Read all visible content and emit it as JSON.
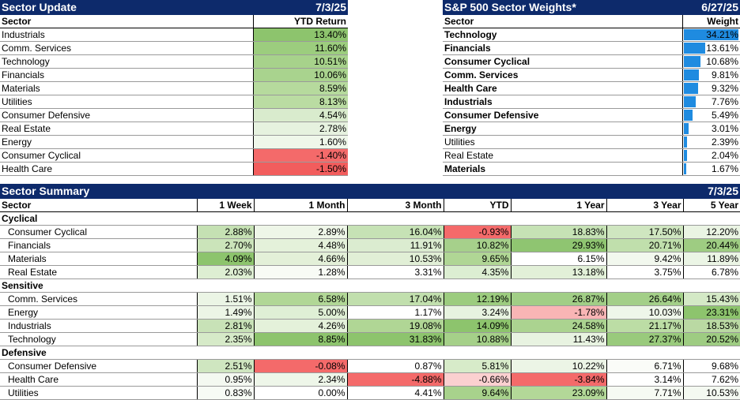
{
  "sector_update": {
    "title": "Sector Update",
    "date": "7/3/25",
    "col_sector": "Sector",
    "col_ytd": "YTD Return",
    "rows": [
      {
        "sector": "Industrials",
        "ytd": "13.40%",
        "color": "#8dc46d"
      },
      {
        "sector": "Comm. Services",
        "ytd": "11.60%",
        "color": "#9ccd7e"
      },
      {
        "sector": "Technology",
        "ytd": "10.51%",
        "color": "#a7d28b"
      },
      {
        "sector": "Financials",
        "ytd": "10.06%",
        "color": "#a9d38e"
      },
      {
        "sector": "Materials",
        "ytd": "8.59%",
        "color": "#b6da9d"
      },
      {
        "sector": "Utilities",
        "ytd": "8.13%",
        "color": "#badca2"
      },
      {
        "sector": "Consumer Defensive",
        "ytd": "4.54%",
        "color": "#d9ebcd"
      },
      {
        "sector": "Real Estate",
        "ytd": "2.78%",
        "color": "#e6f2df"
      },
      {
        "sector": "Energy",
        "ytd": "1.60%",
        "color": "#eff7ea"
      },
      {
        "sector": "Consumer Cyclical",
        "ytd": "-1.40%",
        "color": "#f46a6a"
      },
      {
        "sector": "Health Care",
        "ytd": "-1.50%",
        "color": "#f25d5d"
      }
    ]
  },
  "weights": {
    "title": "S&P 500 Sector Weights*",
    "date": "6/27/25",
    "col_sector": "Sector",
    "col_weight": "Weight",
    "rows": [
      {
        "sector": "Technology",
        "weight": "34.21%",
        "value": 34.21,
        "bold": true
      },
      {
        "sector": "Financials",
        "weight": "13.61%",
        "value": 13.61,
        "bold": true
      },
      {
        "sector": "Consumer Cyclical",
        "weight": "10.68%",
        "value": 10.68,
        "bold": true
      },
      {
        "sector": "Comm. Services",
        "weight": "9.81%",
        "value": 9.81,
        "bold": true
      },
      {
        "sector": "Health Care",
        "weight": "9.32%",
        "value": 9.32,
        "bold": true
      },
      {
        "sector": "Industrials",
        "weight": "7.76%",
        "value": 7.76,
        "bold": true
      },
      {
        "sector": "Consumer Defensive",
        "weight": "5.49%",
        "value": 5.49,
        "bold": true
      },
      {
        "sector": "Energy",
        "weight": "3.01%",
        "value": 3.01,
        "bold": true
      },
      {
        "sector": "Utilities",
        "weight": "2.39%",
        "value": 2.39,
        "bold": false
      },
      {
        "sector": "Real Estate",
        "weight": "2.04%",
        "value": 2.04,
        "bold": false
      },
      {
        "sector": "Materials",
        "weight": "1.67%",
        "value": 1.67,
        "bold": true
      }
    ],
    "bar_color": "#1f8be0"
  },
  "summary": {
    "title": "Sector Summary",
    "date": "7/3/25",
    "columns": [
      "Sector",
      "1 Week",
      "1 Month",
      "3 Month",
      "YTD",
      "1 Year",
      "3 Year",
      "5 Year"
    ],
    "groups": [
      {
        "name": "Cyclical",
        "rows": [
          {
            "sector": "Consumer Cyclical",
            "cells": [
              [
                "2.88%",
                "#c5e1b3"
              ],
              [
                "2.89%",
                "#eef6e8"
              ],
              [
                "16.04%",
                "#c6e2b5"
              ],
              [
                "-0.93%",
                "#f46a6a"
              ],
              [
                "18.83%",
                "#c6e2b5"
              ],
              [
                "17.50%",
                "#cfe6c0"
              ],
              [
                "12.20%",
                "#eaf4e3"
              ]
            ]
          },
          {
            "sector": "Financials",
            "cells": [
              [
                "2.70%",
                "#cbe4ba"
              ],
              [
                "4.48%",
                "#e4f1da"
              ],
              [
                "11.91%",
                "#dbecd0"
              ],
              [
                "10.82%",
                "#a6d08b"
              ],
              [
                "29.93%",
                "#8fc571"
              ],
              [
                "20.71%",
                "#c0dfac"
              ],
              [
                "20.44%",
                "#9ecc82"
              ]
            ]
          },
          {
            "sector": "Materials",
            "cells": [
              [
                "4.09%",
                "#8dc46d"
              ],
              [
                "4.66%",
                "#e3f0d8"
              ],
              [
                "10.53%",
                "#e1efd6"
              ],
              [
                "9.65%",
                "#b0d695"
              ],
              [
                "6.15%",
                "#ffffff"
              ],
              [
                "9.42%",
                "#f2f8ee"
              ],
              [
                "11.89%",
                "#ebf5e5"
              ]
            ]
          },
          {
            "sector": "Real Estate",
            "cells": [
              [
                "2.03%",
                "#ddeed2"
              ],
              [
                "1.28%",
                "#f8fbf5"
              ],
              [
                "3.31%",
                "#ffffff"
              ],
              [
                "4.35%",
                "#dceed2"
              ],
              [
                "13.18%",
                "#e2f0d8"
              ],
              [
                "3.75%",
                "#ffffff"
              ],
              [
                "6.78%",
                "#ffffff"
              ]
            ]
          }
        ]
      },
      {
        "name": "Sensitive",
        "rows": [
          {
            "sector": "Comm. Services",
            "cells": [
              [
                "1.51%",
                "#ebf5e5"
              ],
              [
                "6.58%",
                "#b1d796"
              ],
              [
                "17.04%",
                "#c1dfad"
              ],
              [
                "12.19%",
                "#9ccc7f"
              ],
              [
                "26.87%",
                "#a1ce86"
              ],
              [
                "26.64%",
                "#a3cf88"
              ],
              [
                "15.43%",
                "#d4e9c6"
              ]
            ]
          },
          {
            "sector": "Energy",
            "cells": [
              [
                "1.49%",
                "#ecf5e6"
              ],
              [
                "5.00%",
                "#dfefd5"
              ],
              [
                "1.17%",
                "#ffffff"
              ],
              [
                "3.24%",
                "#e7f3e0"
              ],
              [
                "-1.78%",
                "#f9b5b5"
              ],
              [
                "10.03%",
                "#eef6e9"
              ],
              [
                "23.31%",
                "#8dc46d"
              ]
            ]
          },
          {
            "sector": "Industrials",
            "cells": [
              [
                "2.81%",
                "#c8e2b7"
              ],
              [
                "4.26%",
                "#e4f1da"
              ],
              [
                "19.08%",
                "#b0d695"
              ],
              [
                "14.09%",
                "#8dc46d"
              ],
              [
                "24.58%",
                "#abd390"
              ],
              [
                "21.17%",
                "#bcdda5"
              ],
              [
                "18.53%",
                "#bad9a3"
              ]
            ]
          },
          {
            "sector": "Technology",
            "cells": [
              [
                "2.35%",
                "#d6eac8"
              ],
              [
                "8.85%",
                "#8dc46d"
              ],
              [
                "31.83%",
                "#8dc46d"
              ],
              [
                "10.88%",
                "#a5d089"
              ],
              [
                "11.43%",
                "#e8f3e1"
              ],
              [
                "27.37%",
                "#99ca7c"
              ],
              [
                "20.52%",
                "#9ecc82"
              ]
            ]
          }
        ]
      },
      {
        "name": "Defensive",
        "rows": [
          {
            "sector": "Consumer Defensive",
            "cells": [
              [
                "2.51%",
                "#cfe6c0"
              ],
              [
                "-0.08%",
                "#f46a6a"
              ],
              [
                "0.87%",
                "#ffffff"
              ],
              [
                "5.81%",
                "#d7ebc9"
              ],
              [
                "10.22%",
                "#ecf5e6"
              ],
              [
                "6.71%",
                "#fafcf8"
              ],
              [
                "9.68%",
                "#ffffff"
              ]
            ]
          },
          {
            "sector": "Health Care",
            "cells": [
              [
                "0.95%",
                "#f4f9f1"
              ],
              [
                "2.34%",
                "#eef6e9"
              ],
              [
                "-4.88%",
                "#f46a6a"
              ],
              [
                "-0.66%",
                "#fbd0d0"
              ],
              [
                "-3.84%",
                "#f46a6a"
              ],
              [
                "3.14%",
                "#ffffff"
              ],
              [
                "7.62%",
                "#ffffff"
              ]
            ]
          },
          {
            "sector": "Utilities",
            "cells": [
              [
                "0.83%",
                "#f7fbf5"
              ],
              [
                "0.00%",
                "#ffffff"
              ],
              [
                "4.41%",
                "#ffffff"
              ],
              [
                "9.64%",
                "#a8d28c"
              ],
              [
                "23.09%",
                "#b3d898"
              ],
              [
                "7.71%",
                "#f6faf3"
              ],
              [
                "10.53%",
                "#f4f9f1"
              ]
            ]
          }
        ]
      }
    ]
  }
}
